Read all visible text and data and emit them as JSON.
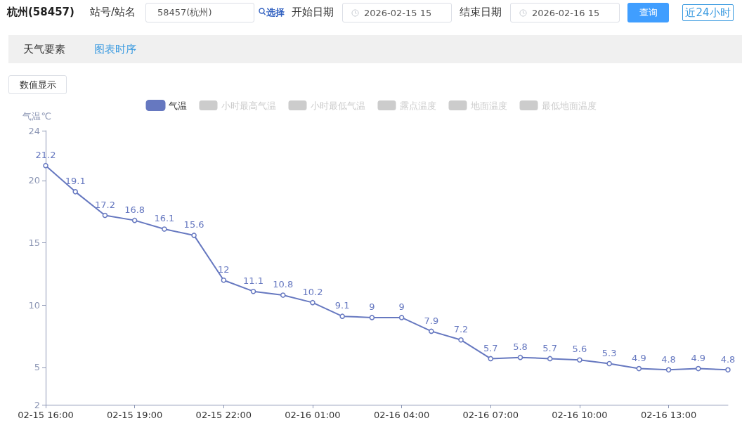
{
  "chart_data": {
    "type": "line",
    "title": "杭州(58457)",
    "annotations": [
      "站号/站名",
      "58457(杭州)",
      "选择",
      "开始日期",
      "2026-02-15 15",
      "结束日期",
      "2026-02-16 15",
      "查询",
      "近24小时",
      "天气要素",
      "图表时序",
      "数值显示"
    ],
    "ylabel": "气温℃",
    "categories": [
      "02-15 16:00",
      null,
      null,
      "02-15 19:00",
      null,
      null,
      "02-15 22:00",
      null,
      null,
      "02-16 01:00",
      null,
      null,
      "02-16 04:00",
      null,
      null,
      "02-16 07:00",
      null,
      null,
      "02-16 10:00",
      null,
      null,
      "02-16 13:00",
      null,
      null
    ],
    "series": [
      {
        "name": "气温",
        "color": "#6678c0",
        "values": [
          21.2,
          19.1,
          17.2,
          16.8,
          16.1,
          15.6,
          12,
          11.1,
          10.8,
          10.2,
          9.1,
          9,
          9,
          7.9,
          7.2,
          5.7,
          5.8,
          5.7,
          5.6,
          5.3,
          4.9,
          4.8,
          4.9,
          4.8
        ]
      },
      {
        "name": "小时最高气温",
        "values": [
          null,
          null,
          null,
          null,
          null,
          null,
          null,
          null,
          null,
          null,
          null,
          null,
          null,
          null,
          null,
          null,
          null,
          null,
          null,
          null,
          null,
          null,
          null,
          null
        ]
      },
      {
        "name": "小时最低气温",
        "values": [
          null,
          null,
          null,
          null,
          null,
          null,
          null,
          null,
          null,
          null,
          null,
          null,
          null,
          null,
          null,
          null,
          null,
          null,
          null,
          null,
          null,
          null,
          null,
          null
        ]
      },
      {
        "name": "露点温度",
        "values": [
          null,
          null,
          null,
          null,
          null,
          null,
          null,
          null,
          null,
          null,
          null,
          null,
          null,
          null,
          null,
          null,
          null,
          null,
          null,
          null,
          null,
          null,
          null,
          null
        ]
      },
      {
        "name": "地面温度",
        "values": [
          null,
          null,
          null,
          null,
          null,
          null,
          null,
          null,
          null,
          null,
          null,
          null,
          null,
          null,
          null,
          null,
          null,
          null,
          null,
          null,
          null,
          null,
          null,
          null
        ]
      },
      {
        "name": "最低地面温度",
        "values": [
          null,
          null,
          null,
          null,
          null,
          null,
          null,
          null,
          null,
          null,
          null,
          null,
          null,
          null,
          null,
          null,
          null,
          null,
          null,
          null,
          null,
          null,
          null,
          null
        ]
      }
    ],
    "ylim": [
      2,
      24
    ],
    "yticks": [
      2,
      5,
      10,
      15,
      20,
      24
    ],
    "grid": false,
    "legend": "top",
    "marker": "circle",
    "line_style": "solid",
    "data_labels": true
  }
}
